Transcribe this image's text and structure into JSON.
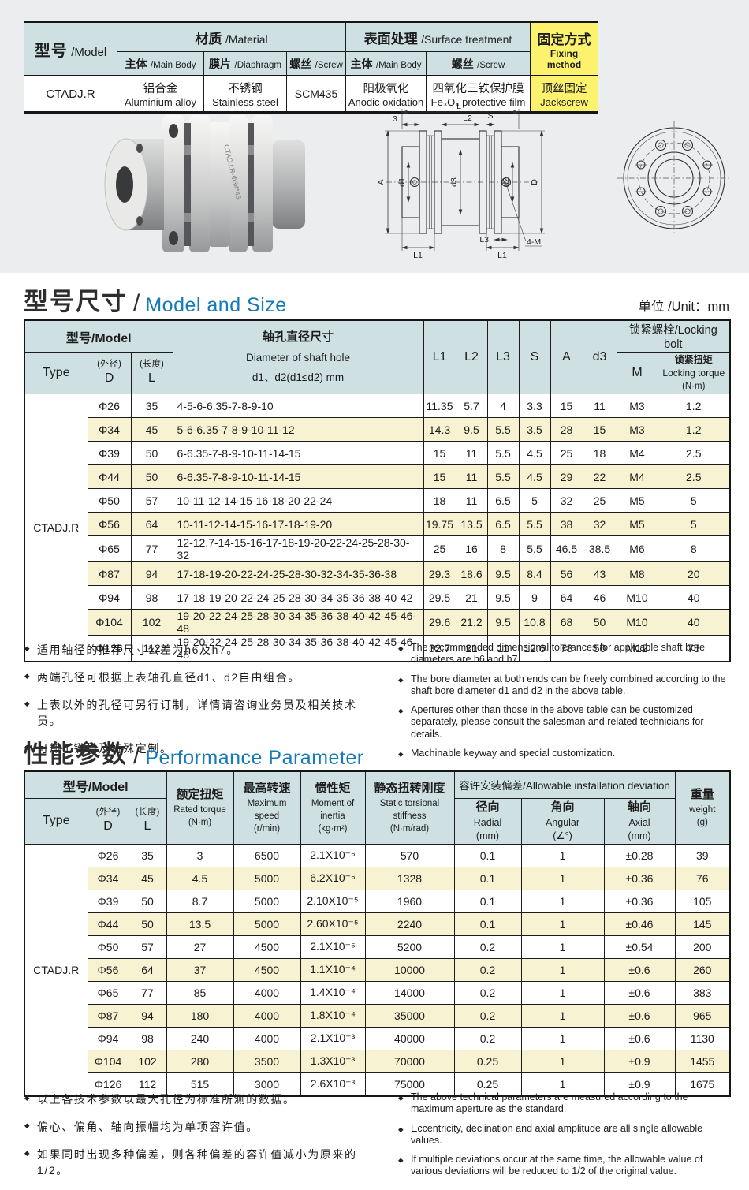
{
  "spec_table": {
    "headers": {
      "model_zh": "型号",
      "model_en": "/Model",
      "material_zh": "材质",
      "material_en": "/Material",
      "surface_zh": "表面处理",
      "surface_en": "/Surface treatment",
      "fixing_zh": "固定方式",
      "fixing_en": "Fixing method",
      "main_body_zh": "主体",
      "main_body_en": "/Main Body",
      "diaphragm_zh": "膜片",
      "diaphragm_en": "/Diaphragm",
      "screw_zh": "螺丝",
      "screw_en": "/Screw",
      "surface_body_zh": "主体",
      "surface_body_en": "/Main Body",
      "surface_screw_zh": "螺丝",
      "surface_screw_en": "/Screw"
    },
    "row": {
      "model": "CTADJ.R",
      "main_body_zh": "铝合金",
      "main_body_en": "Aluminium alloy",
      "diaphragm_zh": "不锈钢",
      "diaphragm_en": "Stainless steel",
      "screw": "SCM435",
      "surface_body_zh": "阳极氧化",
      "surface_body_en": "Anodic oxidation",
      "surface_screw_zh": "四氧化三铁保护膜",
      "surface_screw_en": "Fe₃O₄ protective film",
      "fixing_zh": "顶丝固定",
      "fixing_en": "Jackscrew"
    }
  },
  "figure": {
    "engraving": "CTADJ.R-Φ34*45",
    "labels": {
      "l": "L",
      "l1": "L1",
      "l2": "L2",
      "l3": "L3",
      "s": "S",
      "a": "A",
      "d": "D",
      "d1": "d1",
      "d2": "d2",
      "d3": "d3",
      "callout": "4-M"
    }
  },
  "size": {
    "title_zh": "型号尺寸",
    "slash": "/",
    "title_en": "Model and Size",
    "unit": "单位 /Unit：mm",
    "table": {
      "type": "CTADJ.R",
      "headers": {
        "model": "型号/Model",
        "type": "Type",
        "d_note": "(外径)",
        "d": "D",
        "l_note": "(长度)",
        "l": "L",
        "hole_zh": "轴孔直径尺寸",
        "hole_en": "Diameter of shaft hole",
        "hole_range": "d1、d2(d1≤d2) mm",
        "l1": "L1",
        "l2": "L2",
        "l3": "L3",
        "s": "S",
        "a": "A",
        "d3": "d3",
        "locking_bolt": "锁紧螺栓/Locking bolt",
        "m": "M",
        "torque_zh": "锁紧扭矩",
        "torque_en": "Locking torque",
        "torque_unit": "(N·m)"
      },
      "rows": [
        {
          "dia": "Φ26",
          "len": "35",
          "holes": "4-5-6-6.35-7-8-9-10",
          "l1": "11.35",
          "l2": "5.7",
          "l3": "4",
          "s": "3.3",
          "a": "15",
          "d3": "11",
          "m": "M3",
          "torque": "1.2"
        },
        {
          "dia": "Φ34",
          "len": "45",
          "holes": "5-6-6.35-7-8-9-10-11-12",
          "l1": "14.3",
          "l2": "9.5",
          "l3": "5.5",
          "s": "3.5",
          "a": "28",
          "d3": "15",
          "m": "M3",
          "torque": "1.2"
        },
        {
          "dia": "Φ39",
          "len": "50",
          "holes": "6-6.35-7-8-9-10-11-14-15",
          "l1": "15",
          "l2": "11",
          "l3": "5.5",
          "s": "4.5",
          "a": "25",
          "d3": "18",
          "m": "M4",
          "torque": "2.5"
        },
        {
          "dia": "Φ44",
          "len": "50",
          "holes": "6-6.35-7-8-9-10-11-14-15",
          "l1": "15",
          "l2": "11",
          "l3": "5.5",
          "s": "4.5",
          "a": "29",
          "d3": "22",
          "m": "M4",
          "torque": "2.5"
        },
        {
          "dia": "Φ50",
          "len": "57",
          "holes": "10-11-12-14-15-16-18-20-22-24",
          "l1": "18",
          "l2": "11",
          "l3": "6.5",
          "s": "5",
          "a": "32",
          "d3": "25",
          "m": "M5",
          "torque": "5"
        },
        {
          "dia": "Φ56",
          "len": "64",
          "holes": "10-11-12-14-15-16-17-18-19-20",
          "l1": "19.75",
          "l2": "13.5",
          "l3": "6.5",
          "s": "5.5",
          "a": "38",
          "d3": "32",
          "m": "M5",
          "torque": "5"
        },
        {
          "dia": "Φ65",
          "len": "77",
          "holes": "12-12.7-14-15-16-17-18-19-20-22-24-25-28-30-32",
          "l1": "25",
          "l2": "16",
          "l3": "8",
          "s": "5.5",
          "a": "46.5",
          "d3": "38.5",
          "m": "M6",
          "torque": "8"
        },
        {
          "dia": "Φ87",
          "len": "94",
          "holes": "17-18-19-20-22-24-25-28-30-32-34-35-36-38",
          "l1": "29.3",
          "l2": "18.6",
          "l3": "9.5",
          "s": "8.4",
          "a": "56",
          "d3": "43",
          "m": "M8",
          "torque": "20"
        },
        {
          "dia": "Φ94",
          "len": "98",
          "holes": "17-18-19-20-22-24-25-28-30-34-35-36-38-40-42",
          "l1": "29.5",
          "l2": "21",
          "l3": "9.5",
          "s": "9",
          "a": "64",
          "d3": "46",
          "m": "M10",
          "torque": "40"
        },
        {
          "dia": "Φ104",
          "len": "102",
          "holes": "19-20-22-24-25-28-30-34-35-36-38-40-42-45-46-48",
          "l1": "29.6",
          "l2": "21.2",
          "l3": "9.5",
          "s": "10.8",
          "a": "68",
          "d3": "50",
          "m": "M10",
          "torque": "40"
        },
        {
          "dia": "Φ126",
          "len": "112",
          "holes": "19-20-22-24-25-28-30-34-35-36-38-40-42-45-46-48",
          "l1": "32.7",
          "l2": "21",
          "l3": "11",
          "s": "12.6",
          "a": "78",
          "d3": "50",
          "m": "M12",
          "torque": "75"
        }
      ]
    },
    "notes_zh": [
      "适用轴径的推荐尺寸公差为h6及h7。",
      "两端孔径可根据上表轴孔直径d1、d2自由组合。",
      "上表以外的孔径可另行订制，详情请咨询业务员及相关技术员。",
      "可加工键槽及特殊定制。"
    ],
    "notes_en": [
      "The recommended dimensional tolerances for applicable shaft bore diameters are h6 and h7.",
      "The bore diameter at both ends can be freely combined according to the shaft bore diameter d1 and d2 in the above table.",
      "Apertures other than those in the above table can be customized separately, please consult the salesman and related technicians for details.",
      "Machinable keyway and special customization."
    ]
  },
  "perf": {
    "title_zh": "性能参数",
    "slash": "/",
    "title_en": "Performance Parameter",
    "table": {
      "type": "CTADJ.R",
      "headers": {
        "model": "型号/Model",
        "type": "Type",
        "d_note": "(外径)",
        "d": "D",
        "l_note": "(长度)",
        "l": "L",
        "rated_zh": "额定扭矩",
        "rated_en": "Rated torque",
        "rated_unit": "(N·m)",
        "speed_zh": "最高转速",
        "speed_en": "Maximum speed",
        "speed_unit": "(r/min)",
        "inertia_zh": "惯性矩",
        "inertia_en": "Moment of inertia",
        "inertia_unit": "(kg·m²)",
        "stiff_zh": "静态扭转刚度",
        "stiff_en": "Static torsional stiffness",
        "stiff_unit": "(N·m/rad)",
        "deviation": "容许安装偏差/Allowable installation deviation",
        "radial_zh": "径向",
        "radial_en": "Radial",
        "radial_unit": "(mm)",
        "angular_zh": "角向",
        "angular_en": "Angular",
        "angular_unit": "(∠°)",
        "axial_zh": "轴向",
        "axial_en": "Axial",
        "axial_unit": "(mm)",
        "weight_zh": "重量",
        "weight_en": "weight",
        "weight_unit": "(g)"
      },
      "rows": [
        {
          "dia": "Φ26",
          "len": "35",
          "torque": "3",
          "speed": "6500",
          "inertia": "2.1X10⁻⁶",
          "stiffness": "570",
          "radial": "0.1",
          "angular": "1",
          "axial": "±0.28",
          "weight": "39"
        },
        {
          "dia": "Φ34",
          "len": "45",
          "torque": "4.5",
          "speed": "5000",
          "inertia": "6.2X10⁻⁶",
          "stiffness": "1328",
          "radial": "0.1",
          "angular": "1",
          "axial": "±0.36",
          "weight": "76"
        },
        {
          "dia": "Φ39",
          "len": "50",
          "torque": "8.7",
          "speed": "5000",
          "inertia": "2.10X10⁻⁵",
          "stiffness": "1960",
          "radial": "0.1",
          "angular": "1",
          "axial": "±0.36",
          "weight": "105"
        },
        {
          "dia": "Φ44",
          "len": "50",
          "torque": "13.5",
          "speed": "5000",
          "inertia": "2.60X10⁻⁵",
          "stiffness": "2240",
          "radial": "0.1",
          "angular": "1",
          "axial": "±0.46",
          "weight": "145"
        },
        {
          "dia": "Φ50",
          "len": "57",
          "torque": "27",
          "speed": "4500",
          "inertia": "2.1X10⁻⁵",
          "stiffness": "5200",
          "radial": "0.2",
          "angular": "1",
          "axial": "±0.54",
          "weight": "200"
        },
        {
          "dia": "Φ56",
          "len": "64",
          "torque": "37",
          "speed": "4500",
          "inertia": "1.1X10⁻⁴",
          "stiffness": "10000",
          "radial": "0.2",
          "angular": "1",
          "axial": "±0.6",
          "weight": "260"
        },
        {
          "dia": "Φ65",
          "len": "77",
          "torque": "85",
          "speed": "4000",
          "inertia": "1.4X10⁻⁴",
          "stiffness": "14000",
          "radial": "0.2",
          "angular": "1",
          "axial": "±0.6",
          "weight": "383"
        },
        {
          "dia": "Φ87",
          "len": "94",
          "torque": "180",
          "speed": "4000",
          "inertia": "1.8X10⁻⁴",
          "stiffness": "35000",
          "radial": "0.2",
          "angular": "1",
          "axial": "±0.6",
          "weight": "965"
        },
        {
          "dia": "Φ94",
          "len": "98",
          "torque": "240",
          "speed": "4000",
          "inertia": "2.1X10⁻³",
          "stiffness": "40000",
          "radial": "0.2",
          "angular": "1",
          "axial": "±0.6",
          "weight": "1130"
        },
        {
          "dia": "Φ104",
          "len": "102",
          "torque": "280",
          "speed": "3500",
          "inertia": "1.3X10⁻³",
          "stiffness": "70000",
          "radial": "0.25",
          "angular": "1",
          "axial": "±0.9",
          "weight": "1455"
        },
        {
          "dia": "Φ126",
          "len": "112",
          "torque": "515",
          "speed": "3000",
          "inertia": "2.6X10⁻³",
          "stiffness": "75000",
          "radial": "0.25",
          "angular": "1",
          "axial": "±0.9",
          "weight": "1675"
        }
      ]
    },
    "notes_zh": [
      "以上各技术参数以最大孔径为标准所测的数据。",
      "偏心、偏角、轴向振幅均为单项容许值。",
      "如果同时出现多种偏差，则各种偏差的容许值减小为原来的1/2。"
    ],
    "notes_en": [
      "The above technical parameters are measured according to the maximum aperture as the standard.",
      "Eccentricity, declination and axial amplitude are all single allowable values.",
      "If multiple deviations occur at the same time, the allowable value of various deviations will be reduced to 1/2 of the original value."
    ]
  }
}
